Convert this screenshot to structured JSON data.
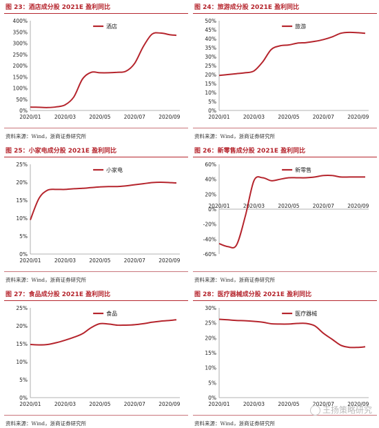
{
  "source_text": "资料来源：Wind，浙商证券研究所",
  "watermark": "王扬策略研究",
  "colors": {
    "accent": "#b5242c",
    "line": "#b5242c",
    "axis": "#999999",
    "text": "#222222"
  },
  "panels": [
    {
      "title": "图 23：酒店成分股 2021E 盈利同比"
    },
    {
      "title": "图 24：旅游成分股 2021E 盈利同比"
    },
    {
      "title": "图 25：小家电成分股 2021E 盈利同比"
    },
    {
      "title": "图 26：新零售成分股 2021E 盈利同比"
    },
    {
      "title": "图 27：食品成分股 2021E 盈利同比"
    },
    {
      "title": "图 28：医疗器械成分股 2021E 盈利同比"
    }
  ],
  "chart_data": [
    {
      "type": "line",
      "legend": "酒店",
      "ylim": [
        0,
        400
      ],
      "yticks": [
        "0%",
        "50%",
        "100%",
        "150%",
        "200%",
        "250%",
        "300%",
        "350%",
        "400%"
      ],
      "xticks": [
        "2020/01",
        "2020/03",
        "2020/05",
        "2020/07",
        "2020/09"
      ],
      "xlim": [
        0,
        8.6
      ],
      "x": [
        0,
        0.5,
        1,
        1.5,
        2,
        2.5,
        3,
        3.5,
        4,
        4.5,
        5,
        5.5,
        6,
        6.5,
        7,
        7.5,
        8,
        8.4
      ],
      "y": [
        15,
        14,
        13,
        16,
        25,
        60,
        140,
        170,
        168,
        168,
        170,
        175,
        210,
        285,
        340,
        345,
        338,
        335
      ]
    },
    {
      "type": "line",
      "legend": "旅游",
      "ylim": [
        0,
        50
      ],
      "yticks": [
        "0%",
        "5%",
        "10%",
        "15%",
        "20%",
        "25%",
        "30%",
        "35%",
        "40%",
        "45%",
        "50%"
      ],
      "xticks": [
        "2020/01",
        "2020/03",
        "2020/05",
        "2020/07",
        "2020/09"
      ],
      "xlim": [
        0,
        8.6
      ],
      "x": [
        0,
        0.5,
        1,
        1.5,
        2,
        2.5,
        3,
        3.5,
        4,
        4.5,
        5,
        5.5,
        6,
        6.5,
        7,
        7.5,
        8,
        8.4
      ],
      "y": [
        19.5,
        20,
        20.5,
        21,
        22,
        27,
        34,
        36,
        36.5,
        37.5,
        37.8,
        38.5,
        39.5,
        41,
        43,
        43.5,
        43.3,
        43
      ]
    },
    {
      "type": "line",
      "legend": "小家电",
      "ylim": [
        0,
        25
      ],
      "yticks": [
        "0%",
        "5%",
        "10%",
        "15%",
        "20%",
        "25%"
      ],
      "xticks": [
        "2020/01",
        "2020/03",
        "2020/05",
        "2020/07",
        "2020/09"
      ],
      "xlim": [
        0,
        8.6
      ],
      "x": [
        0,
        0.5,
        1,
        1.5,
        2,
        2.5,
        3,
        3.5,
        4,
        4.5,
        5,
        5.5,
        6,
        6.5,
        7,
        7.5,
        8,
        8.4
      ],
      "y": [
        9.5,
        15.5,
        17.8,
        18,
        18,
        18.2,
        18.3,
        18.5,
        18.7,
        18.8,
        18.8,
        19,
        19.3,
        19.6,
        19.9,
        20,
        19.9,
        19.8
      ]
    },
    {
      "type": "line",
      "legend": "新零售",
      "ylim": [
        -60,
        60
      ],
      "yticks": [
        "-60%",
        "-40%",
        "-20%",
        "0%",
        "20%",
        "40%",
        "60%"
      ],
      "xticks": [
        "2020/01",
        "2020/03",
        "2020/05",
        "2020/07",
        "2020/09"
      ],
      "xlim": [
        0,
        8.6
      ],
      "x": [
        0,
        0.5,
        1,
        1.5,
        2,
        2.5,
        3,
        3.5,
        4,
        4.5,
        5,
        5.5,
        6,
        6.5,
        7,
        7.5,
        8,
        8.4
      ],
      "y": [
        -46,
        -50,
        -48,
        -10,
        38,
        42,
        38,
        40,
        42,
        42,
        42,
        43,
        45,
        45,
        43,
        43,
        43,
        43
      ]
    },
    {
      "type": "line",
      "legend": "食品",
      "ylim": [
        0,
        25
      ],
      "yticks": [
        "0%",
        "5%",
        "10%",
        "15%",
        "20%",
        "25%"
      ],
      "xticks": [
        "2020/01",
        "2020/03",
        "2020/05",
        "2020/07",
        "2020/09"
      ],
      "xlim": [
        0,
        8.6
      ],
      "x": [
        0,
        0.5,
        1,
        1.5,
        2,
        2.5,
        3,
        3.5,
        4,
        4.5,
        5,
        5.5,
        6,
        6.5,
        7,
        7.5,
        8,
        8.4
      ],
      "y": [
        14.8,
        14.7,
        14.8,
        15.3,
        16,
        16.8,
        17.8,
        19.5,
        20.6,
        20.5,
        20.2,
        20.2,
        20.3,
        20.6,
        21,
        21.3,
        21.5,
        21.7
      ]
    },
    {
      "type": "line",
      "legend": "医疗器械",
      "ylim": [
        0,
        30
      ],
      "yticks": [
        "0%",
        "5%",
        "10%",
        "15%",
        "20%",
        "25%",
        "30%"
      ],
      "xticks": [
        "2020/01",
        "2020/03",
        "2020/05",
        "2020/07",
        "2020/09"
      ],
      "xlim": [
        0,
        8.6
      ],
      "x": [
        0,
        0.5,
        1,
        1.5,
        2,
        2.5,
        3,
        3.5,
        4,
        4.5,
        5,
        5.5,
        6,
        6.5,
        7,
        7.5,
        8,
        8.4
      ],
      "y": [
        26.2,
        26,
        25.8,
        25.7,
        25.5,
        25.2,
        24.7,
        24.6,
        24.6,
        24.8,
        24.8,
        24,
        21.5,
        19.5,
        17.5,
        16.8,
        16.8,
        17
      ]
    }
  ]
}
